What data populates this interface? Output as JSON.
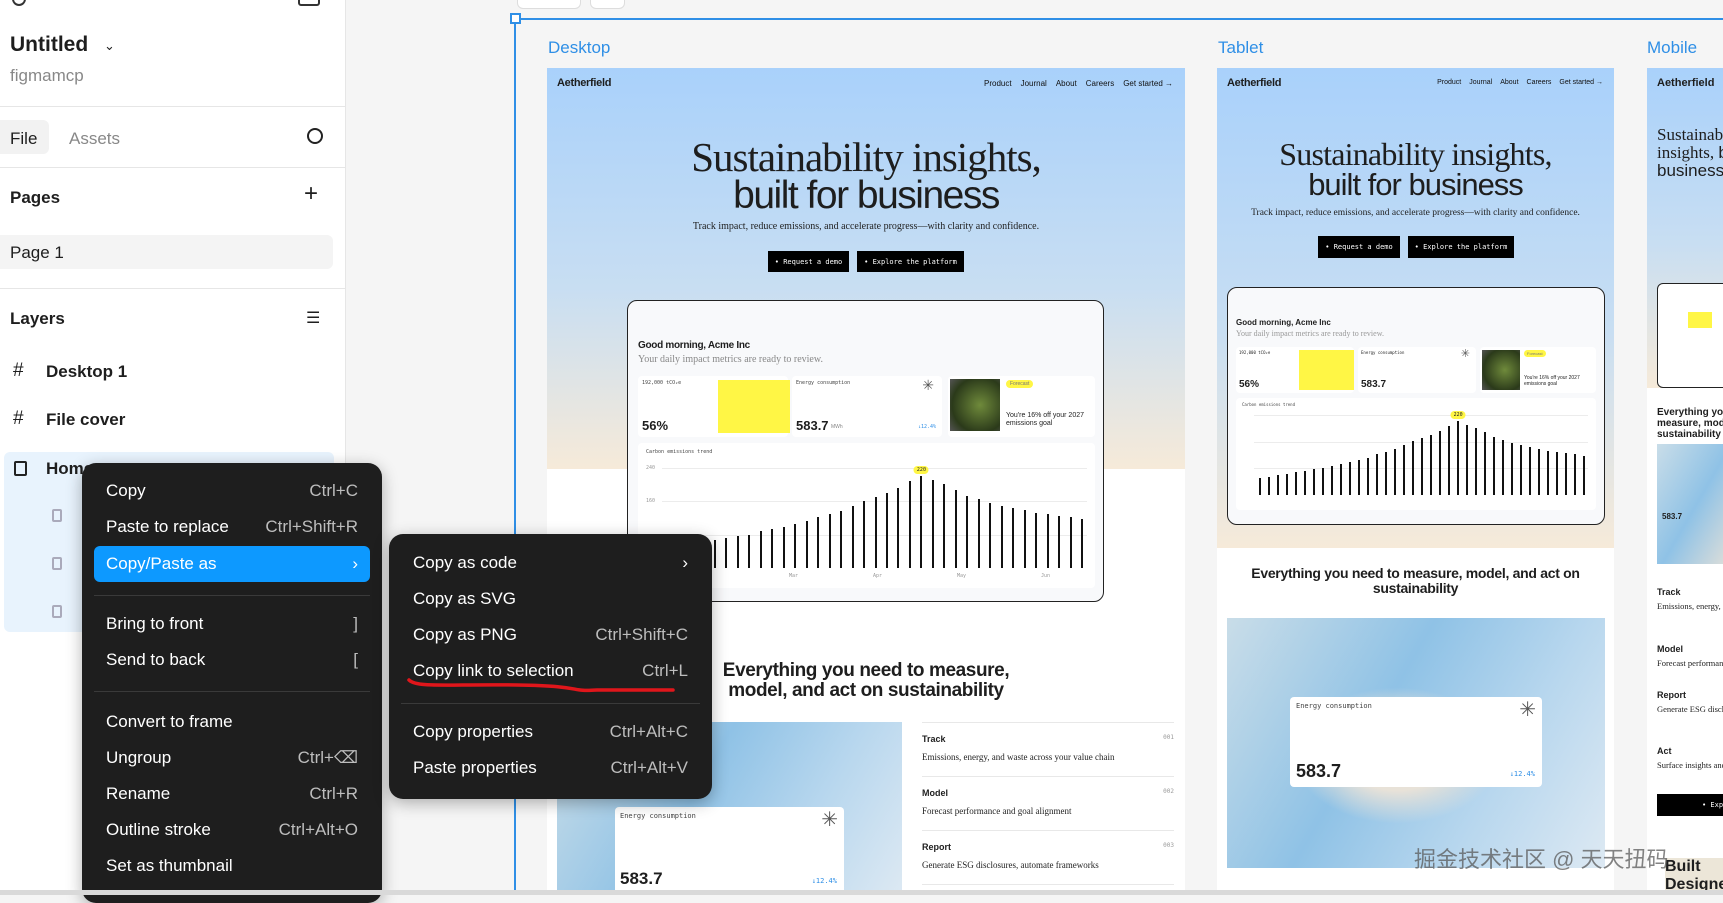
{
  "sidebar": {
    "file_title": "Untitled",
    "team": "figmamcp",
    "tabs": [
      {
        "label": "File"
      },
      {
        "label": "Assets"
      }
    ],
    "pages_heading": "Pages",
    "pages": [
      {
        "label": "Page 1"
      }
    ],
    "layers_heading": "Layers",
    "layers": [
      {
        "label": "Desktop 1",
        "icon": "frame-icon"
      },
      {
        "label": "File cover",
        "icon": "frame-icon"
      },
      {
        "label": "Home",
        "icon": "section-icon"
      }
    ]
  },
  "context_menu": {
    "items": [
      {
        "label": "Copy",
        "shortcut": "Ctrl+C"
      },
      {
        "label": "Paste to replace",
        "shortcut": "Ctrl+Shift+R"
      },
      {
        "label": "Copy/Paste as",
        "shortcut": "›"
      },
      {
        "label": "Bring to front",
        "shortcut": "]"
      },
      {
        "label": "Send to back",
        "shortcut": "["
      },
      {
        "label": "Convert to frame",
        "shortcut": ""
      },
      {
        "label": "Ungroup",
        "shortcut": "Ctrl+⌫"
      },
      {
        "label": "Rename",
        "shortcut": "Ctrl+R"
      },
      {
        "label": "Outline stroke",
        "shortcut": "Ctrl+Alt+O"
      },
      {
        "label": "Set as thumbnail",
        "shortcut": ""
      }
    ]
  },
  "submenu": {
    "items": [
      {
        "label": "Copy as code",
        "shortcut": "›"
      },
      {
        "label": "Copy as SVG",
        "shortcut": ""
      },
      {
        "label": "Copy as PNG",
        "shortcut": "Ctrl+Shift+C"
      },
      {
        "label": "Copy link to selection",
        "shortcut": "Ctrl+L"
      },
      {
        "label": "Copy properties",
        "shortcut": "Ctrl+Alt+C"
      },
      {
        "label": "Paste properties",
        "shortcut": "Ctrl+Alt+V"
      }
    ],
    "annotation_color": "#e0161b"
  },
  "canvas": {
    "frames": [
      {
        "label": "Desktop"
      },
      {
        "label": "Tablet"
      },
      {
        "label": "Mobile"
      }
    ],
    "selection_color": "#2f8fe6"
  },
  "site": {
    "brand": "Aetherfield",
    "nav": [
      "Product",
      "Journal",
      "About",
      "Careers",
      "Get started →"
    ],
    "headline_1": "Sustainability insights,",
    "headline_2": "built for business",
    "subtitle": "Track impact, reduce emissions, and accelerate progress—with clarity and confidence.",
    "cta_primary": "• Request a demo",
    "cta_secondary": "• Explore the platform",
    "greeting": "Good morning, Acme Inc",
    "greeting_sub": "Your daily impact metrics are ready to review.",
    "metric1_label": "192,000 tCO₂e",
    "metric1_value": "56%",
    "metric2_label": "Energy consumption",
    "metric2_value": "583.7",
    "metric2_unit": "MWh",
    "metric2_change": "↓12.4%",
    "forecast_badge": "Forecast",
    "forecast_text": "You're 16% off your 2027 emissions goal",
    "chart_title": "Carbon emissions trend",
    "chart_ticks": [
      "240",
      "160"
    ],
    "chart_months": [
      "Mar",
      "Apr",
      "May",
      "Jun"
    ],
    "chart_peak_label": "220",
    "trend_values": [
      50,
      55,
      60,
      64,
      68,
      72,
      77,
      80,
      88,
      94,
      99,
      105,
      112,
      123,
      130,
      137,
      149,
      161,
      170,
      181,
      193,
      208,
      221,
      211,
      201,
      188,
      174,
      165,
      156,
      149,
      145,
      139,
      133,
      129,
      125,
      122,
      118
    ],
    "section_heading": "Everything you need to measure, model, and act on sustainability",
    "features": [
      {
        "title": "Track",
        "desc": "Emissions, energy, and waste across your value chain",
        "num": "001"
      },
      {
        "title": "Model",
        "desc": "Forecast performance and goal alignment",
        "num": "002"
      },
      {
        "title": "Report",
        "desc": "Generate ESG disclosures, automate frameworks",
        "num": "003"
      },
      {
        "title": "Act",
        "desc": "Surface insights and",
        "num": "004"
      }
    ],
    "mobile_cta": "• Explore",
    "mobile_footer": "Built Designed"
  },
  "watermark": "掘金技术社区 @ 天天扭码"
}
